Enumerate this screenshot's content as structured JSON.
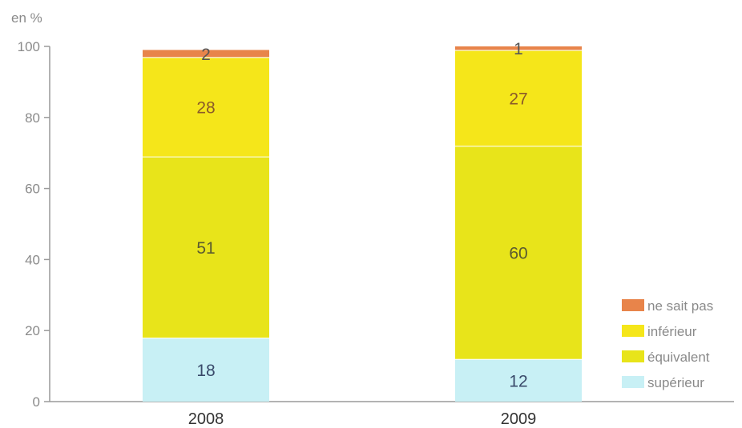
{
  "chart_data": {
    "type": "bar",
    "stacked": true,
    "unit_label": "en %",
    "categories": [
      "2008",
      "2009"
    ],
    "ylim": [
      0,
      100
    ],
    "yticks": [
      0,
      20,
      40,
      60,
      80,
      100
    ],
    "series": [
      {
        "name": "supérieur",
        "values": [
          18,
          12
        ],
        "color": "#c8f0f5",
        "label_color": "#3a4a6a"
      },
      {
        "name": "équivalent",
        "values": [
          51,
          60
        ],
        "color": "#e8e41a",
        "label_color": "#5a5a30"
      },
      {
        "name": "inférieur",
        "values": [
          28,
          27
        ],
        "color": "#f5e61a",
        "label_color": "#8a5a2a"
      },
      {
        "name": "ne sait pas",
        "values": [
          2,
          1
        ],
        "color": "#e8844a",
        "label_color": "#555555"
      }
    ],
    "legend_position": "bottom-right",
    "grid": false
  }
}
